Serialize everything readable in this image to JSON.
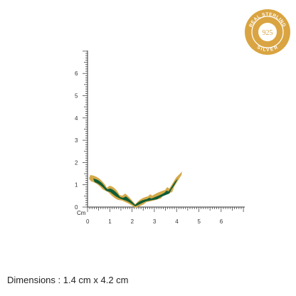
{
  "badge": {
    "top_text": "REAL STERLING",
    "bottom_text": "SILVER",
    "center_text": "925",
    "gold_color": "#d9a441",
    "gold_dark": "#b9822a"
  },
  "ruler": {
    "unit_label": "Cm",
    "x_ticks": [
      "0",
      "1",
      "2",
      "3",
      "4",
      "5",
      "6"
    ],
    "y_ticks": [
      "0",
      "1",
      "2",
      "3",
      "4",
      "5",
      "6"
    ],
    "line_color": "#333333"
  },
  "product": {
    "name": "pendant-enamel-bar",
    "enamel_color": "#0f5c36",
    "metal_color": "#d4a94a",
    "width_cm": 4.2,
    "height_cm": 1.4
  },
  "caption": {
    "text": "Dimensions : 1.4 cm x 4.2 cm"
  }
}
